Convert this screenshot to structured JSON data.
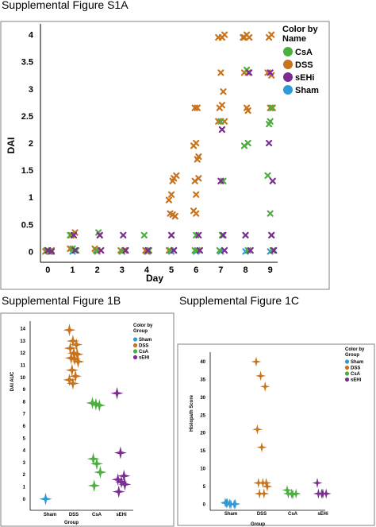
{
  "titles": {
    "a": "Supplemental Figure S1A",
    "b": "Supplemental Figure 1B",
    "c": "Supplemental Figure 1C"
  },
  "colors": {
    "CsA": "#4cae3f",
    "DSS": "#c8741e",
    "sEHi": "#7b2d90",
    "Sham": "#2e9ad8"
  },
  "chart_data": [
    {
      "type": "scatter",
      "title": "Supplemental Figure S1A",
      "xlabel": "Day",
      "ylabel": "DAI",
      "xlim": [
        -0.3,
        9.3
      ],
      "ylim": [
        -0.2,
        4.2
      ],
      "x_ticks": [
        0,
        1,
        2,
        3,
        4,
        5,
        6,
        7,
        8,
        9
      ],
      "y_ticks": [
        "0",
        "0.5",
        "1",
        "1.5",
        "2",
        "2.5",
        "3",
        "3.5",
        "4"
      ],
      "y_tick_values": [
        0,
        0.5,
        1,
        1.5,
        2,
        2.5,
        3,
        3.5,
        4
      ],
      "grid": false,
      "marker": "x",
      "legend": {
        "title": "Color by Name",
        "position": "top-right",
        "items": [
          "CsA",
          "DSS",
          "sEHi",
          "Sham"
        ]
      },
      "series": [
        {
          "name": "DSS",
          "points": [
            [
              -0.1,
              0
            ],
            [
              0.05,
              0
            ],
            [
              0.15,
              0.02
            ],
            [
              0.9,
              0.05
            ],
            [
              1.1,
              0.35
            ],
            [
              0.95,
              0.3
            ],
            [
              1.9,
              0.05
            ],
            [
              2.1,
              0.3
            ],
            [
              2.0,
              0.02
            ],
            [
              2.95,
              0.02
            ],
            [
              3.1,
              0.02
            ],
            [
              3.95,
              0.02
            ],
            [
              4.05,
              0
            ],
            [
              4.9,
              0.95
            ],
            [
              5.0,
              1.05
            ],
            [
              5.1,
              1.35
            ],
            [
              5.05,
              1.3
            ],
            [
              5.2,
              1.4
            ],
            [
              4.95,
              0.7
            ],
            [
              5.05,
              0.68
            ],
            [
              5.15,
              0.65
            ],
            [
              4.9,
              0.02
            ],
            [
              5.95,
              2.65
            ],
            [
              6.05,
              2.65
            ],
            [
              5.9,
              1.95
            ],
            [
              6.0,
              2.0
            ],
            [
              6.1,
              1.75
            ],
            [
              6.05,
              1.7
            ],
            [
              5.95,
              1.3
            ],
            [
              6.1,
              1.35
            ],
            [
              6.0,
              1.05
            ],
            [
              5.9,
              0.75
            ],
            [
              6.0,
              0.7
            ],
            [
              6.9,
              3.95
            ],
            [
              7.05,
              3.95
            ],
            [
              7.15,
              4.0
            ],
            [
              7.0,
              3.3
            ],
            [
              7.1,
              2.95
            ],
            [
              6.95,
              2.65
            ],
            [
              7.05,
              2.7
            ],
            [
              7.15,
              2.4
            ],
            [
              6.9,
              2.4
            ],
            [
              7.95,
              3.95
            ],
            [
              8.05,
              4.0
            ],
            [
              8.15,
              3.95
            ],
            [
              7.9,
              3.95
            ],
            [
              8.1,
              3.3
            ],
            [
              7.95,
              3.3
            ],
            [
              8.05,
              2.65
            ],
            [
              8.1,
              2.6
            ],
            [
              8.95,
              3.95
            ],
            [
              9.05,
              4.0
            ],
            [
              8.9,
              3.3
            ],
            [
              9.05,
              3.25
            ],
            [
              9.0,
              2.65
            ],
            [
              9.1,
              2.65
            ]
          ]
        },
        {
          "name": "CsA",
          "points": [
            [
              -0.05,
              0.02
            ],
            [
              0.1,
              0
            ],
            [
              1.0,
              0.05
            ],
            [
              0.9,
              0.3
            ],
            [
              1.15,
              0.02
            ],
            [
              2.05,
              0.35
            ],
            [
              1.95,
              0.02
            ],
            [
              3.0,
              0
            ],
            [
              3.9,
              0.3
            ],
            [
              4.1,
              0.02
            ],
            [
              5.0,
              0.3
            ],
            [
              5.1,
              0.02
            ],
            [
              4.95,
              0.02
            ],
            [
              6.0,
              0.3
            ],
            [
              6.05,
              0.02
            ],
            [
              5.95,
              0.02
            ],
            [
              7.0,
              2.4
            ],
            [
              7.05,
              0.3
            ],
            [
              6.95,
              0.02
            ],
            [
              7.1,
              1.3
            ],
            [
              8.05,
              3.35
            ],
            [
              7.95,
              1.95
            ],
            [
              8.1,
              2.0
            ],
            [
              8.0,
              0.3
            ],
            [
              8.1,
              0.02
            ],
            [
              9.05,
              2.65
            ],
            [
              9.0,
              2.4
            ],
            [
              8.95,
              2.35
            ],
            [
              8.9,
              1.4
            ],
            [
              9.0,
              0.7
            ],
            [
              9.05,
              0.3
            ],
            [
              9.1,
              0.02
            ]
          ]
        },
        {
          "name": "sEHi",
          "points": [
            [
              0.0,
              0.02
            ],
            [
              0.15,
              0
            ],
            [
              1.05,
              0.3
            ],
            [
              1.1,
              0.02
            ],
            [
              2.1,
              0.3
            ],
            [
              2.15,
              0.02
            ],
            [
              3.05,
              0.3
            ],
            [
              3.15,
              0.02
            ],
            [
              4.05,
              0.02
            ],
            [
              5.1,
              0.02
            ],
            [
              5.0,
              0.3
            ],
            [
              6.1,
              0.3
            ],
            [
              6.15,
              0.02
            ],
            [
              7.05,
              2.25
            ],
            [
              7.0,
              1.3
            ],
            [
              7.1,
              0.3
            ],
            [
              7.15,
              0.02
            ],
            [
              8.15,
              3.3
            ],
            [
              8.0,
              0.3
            ],
            [
              8.2,
              0.02
            ],
            [
              9.0,
              3.3
            ],
            [
              8.95,
              2.0
            ],
            [
              9.1,
              1.3
            ],
            [
              9.05,
              0.3
            ],
            [
              9.15,
              0.02
            ]
          ]
        },
        {
          "name": "Sham",
          "points": [
            [
              0.05,
              0
            ],
            [
              1.0,
              0
            ],
            [
              2.0,
              0
            ],
            [
              3.0,
              0
            ],
            [
              4.0,
              0
            ],
            [
              5.0,
              0
            ],
            [
              6.0,
              0
            ],
            [
              7.0,
              0
            ],
            [
              8.0,
              0
            ],
            [
              9.0,
              0
            ]
          ]
        }
      ]
    },
    {
      "type": "scatter",
      "title": "Supplemental Figure 1B",
      "xlabel": "Group",
      "ylabel": "DAI AUC",
      "categories": [
        "Sham",
        "DSS",
        "CsA",
        "sEHi"
      ],
      "ylim": [
        -0.8,
        14.5
      ],
      "y_ticks": [
        "0",
        "1",
        "2",
        "3",
        "4",
        "5",
        "6",
        "7",
        "8",
        "9",
        "10",
        "11",
        "12",
        "13",
        "14"
      ],
      "y_tick_values": [
        0,
        1,
        2,
        3,
        4,
        5,
        6,
        7,
        8,
        9,
        10,
        11,
        12,
        13,
        14
      ],
      "grid": false,
      "marker": "star",
      "legend": {
        "title": "Color by Group",
        "position": "top-right",
        "items": [
          "Sham",
          "DSS",
          "CsA",
          "sEHi"
        ]
      },
      "series": [
        {
          "name": "Sham",
          "points": [
            [
              "Sham",
              0.0
            ]
          ]
        },
        {
          "name": "DSS",
          "points": [
            [
              "DSS",
              13.9
            ],
            [
              "DSS",
              13.0
            ],
            [
              "DSS",
              12.7
            ],
            [
              "DSS",
              12.4
            ],
            [
              "DSS",
              12.0
            ],
            [
              "DSS",
              11.9
            ],
            [
              "DSS",
              11.6
            ],
            [
              "DSS",
              11.5
            ],
            [
              "DSS",
              11.3
            ],
            [
              "DSS",
              10.6
            ],
            [
              "DSS",
              10.1
            ],
            [
              "DSS",
              9.8
            ],
            [
              "DSS",
              9.5
            ]
          ]
        },
        {
          "name": "CsA",
          "points": [
            [
              "CsA",
              7.9
            ],
            [
              "CsA",
              7.8
            ],
            [
              "CsA",
              7.7
            ],
            [
              "CsA",
              3.3
            ],
            [
              "CsA",
              2.9
            ],
            [
              "CsA",
              2.2
            ],
            [
              "CsA",
              1.1
            ]
          ]
        },
        {
          "name": "sEHi",
          "points": [
            [
              "sEHi",
              8.7
            ],
            [
              "sEHi",
              3.8
            ],
            [
              "sEHi",
              1.9
            ],
            [
              "sEHi",
              1.6
            ],
            [
              "sEHi",
              1.4
            ],
            [
              "sEHi",
              1.2
            ],
            [
              "sEHi",
              0.6
            ]
          ]
        }
      ]
    },
    {
      "type": "scatter",
      "title": "Supplemental Figure 1C",
      "xlabel": "Group",
      "ylabel": "Histopath Score",
      "categories": [
        "Sham",
        "DSS",
        "CsA",
        "sEHi"
      ],
      "ylim": [
        -1,
        42
      ],
      "y_ticks": [
        "0",
        "5",
        "10",
        "15",
        "20",
        "25",
        "30",
        "35",
        "40"
      ],
      "y_tick_values": [
        0,
        5,
        10,
        15,
        20,
        25,
        30,
        35,
        40
      ],
      "grid": false,
      "marker": "star",
      "legend": {
        "title": "Color by Group",
        "position": "top-right",
        "items": [
          "Sham",
          "DSS",
          "CsA",
          "sEHi"
        ]
      },
      "series": [
        {
          "name": "Sham",
          "points": [
            [
              "Sham",
              0.5
            ],
            [
              "Sham",
              0.2
            ],
            [
              "Sham",
              0.0
            ],
            [
              "Sham",
              0.3
            ],
            [
              "Sham",
              0.0
            ],
            [
              "Sham",
              0.1
            ],
            [
              "Sham",
              0.4
            ]
          ]
        },
        {
          "name": "DSS",
          "points": [
            [
              "DSS",
              40
            ],
            [
              "DSS",
              36
            ],
            [
              "DSS",
              33
            ],
            [
              "DSS",
              21
            ],
            [
              "DSS",
              16
            ],
            [
              "DSS",
              6
            ],
            [
              "DSS",
              6
            ],
            [
              "DSS",
              6
            ],
            [
              "DSS",
              5
            ],
            [
              "DSS",
              3
            ],
            [
              "DSS",
              3
            ]
          ]
        },
        {
          "name": "CsA",
          "points": [
            [
              "CsA",
              4
            ],
            [
              "CsA",
              3
            ],
            [
              "CsA",
              3
            ],
            [
              "CsA",
              3
            ],
            [
              "CsA",
              2.8
            ]
          ]
        },
        {
          "name": "sEHi",
          "points": [
            [
              "sEHi",
              6
            ],
            [
              "sEHi",
              3
            ],
            [
              "sEHi",
              3
            ],
            [
              "sEHi",
              3
            ],
            [
              "sEHi",
              3
            ]
          ]
        }
      ]
    }
  ]
}
